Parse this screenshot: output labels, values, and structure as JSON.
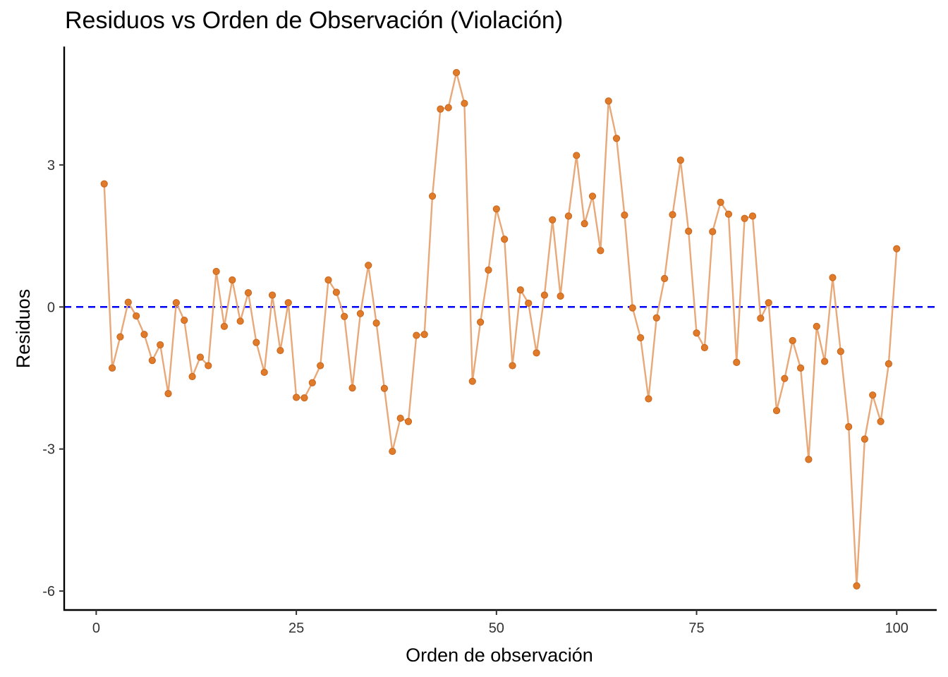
{
  "chart_data": {
    "type": "line",
    "title": "Residuos vs Orden de Observación (Violación)",
    "xlabel": "Orden de observación",
    "ylabel": "Residuos",
    "xlim": [
      -4,
      105
    ],
    "ylim": [
      -6.4,
      5.5
    ],
    "x_ticks": [
      0,
      25,
      50,
      75,
      100
    ],
    "x_tick_labels": [
      "0",
      "25",
      "50",
      "75",
      "100"
    ],
    "y_ticks": [
      3,
      0,
      -3,
      -6
    ],
    "y_tick_labels": [
      "3",
      "0",
      "-3",
      "-6"
    ],
    "reference_line": {
      "y": 0,
      "style": "dashed",
      "color": "#0000ff"
    },
    "grid": false,
    "legend": "none",
    "colors": {
      "line": "#e8a878",
      "point": "#e07b2a",
      "point_edge": "#c8651c"
    },
    "x": [
      1,
      2,
      3,
      4,
      5,
      6,
      7,
      8,
      9,
      10,
      11,
      12,
      13,
      14,
      15,
      16,
      17,
      18,
      19,
      20,
      21,
      22,
      23,
      24,
      25,
      26,
      27,
      28,
      29,
      30,
      31,
      32,
      33,
      34,
      35,
      36,
      37,
      38,
      39,
      40,
      41,
      42,
      43,
      44,
      45,
      46,
      47,
      48,
      49,
      50,
      51,
      52,
      53,
      54,
      55,
      56,
      57,
      58,
      59,
      60,
      61,
      62,
      63,
      64,
      65,
      66,
      67,
      68,
      69,
      70,
      71,
      72,
      73,
      74,
      75,
      76,
      77,
      78,
      79,
      80,
      81,
      82,
      83,
      84,
      85,
      86,
      87,
      88,
      89,
      90,
      91,
      92,
      93,
      94,
      95,
      96,
      97,
      98,
      99,
      100
    ],
    "y": [
      2.6,
      -1.29,
      -0.63,
      0.1,
      -0.19,
      -0.58,
      -1.13,
      -0.8,
      -1.83,
      0.09,
      -0.28,
      -1.47,
      -1.06,
      -1.24,
      0.75,
      -0.41,
      0.57,
      -0.3,
      0.3,
      -0.75,
      -1.38,
      0.25,
      -0.92,
      0.09,
      -1.91,
      -1.92,
      -1.6,
      -1.24,
      0.57,
      0.31,
      -0.2,
      -1.71,
      -0.14,
      0.88,
      -0.34,
      -1.72,
      -3.05,
      -2.35,
      -2.42,
      -0.6,
      -0.58,
      2.34,
      4.18,
      4.21,
      4.95,
      4.3,
      -1.57,
      -0.32,
      0.78,
      2.07,
      1.43,
      -1.24,
      0.36,
      0.08,
      -0.97,
      0.25,
      1.84,
      0.23,
      1.92,
      3.2,
      1.76,
      2.34,
      1.19,
      4.35,
      3.56,
      1.94,
      -0.02,
      -0.65,
      -1.94,
      -0.23,
      0.6,
      1.95,
      3.1,
      1.6,
      -0.55,
      -0.86,
      1.59,
      2.21,
      1.96,
      -1.17,
      1.87,
      1.92,
      -0.24,
      0.09,
      -2.19,
      -1.51,
      -0.71,
      -1.29,
      -3.22,
      -0.41,
      -1.15,
      0.62,
      -0.94,
      -2.53,
      -5.89,
      -2.79,
      -1.86,
      -2.42,
      -1.2,
      1.23
    ]
  }
}
